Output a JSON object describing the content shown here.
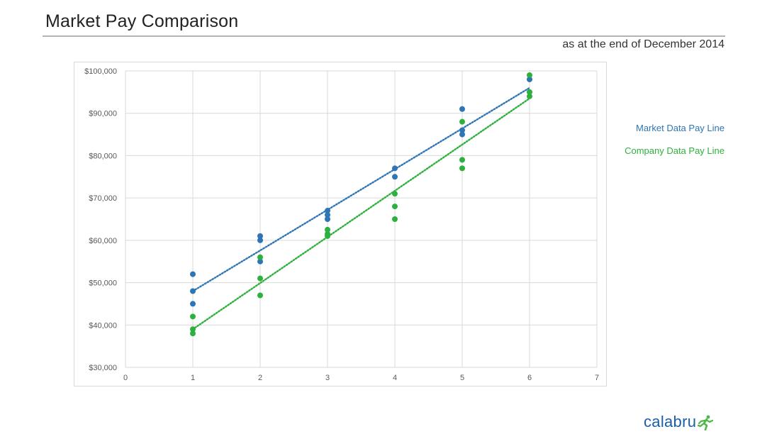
{
  "header": {
    "title": "Market Pay Comparison",
    "subtitle": "as at the end of December 2014"
  },
  "legend": {
    "market_label": "Market Data Pay Line",
    "company_label": "Company Data Pay Line"
  },
  "brand": {
    "logo_text": "calabru",
    "logo_color": "#1a5fa8",
    "logo_icon": "running-figure-icon",
    "icon_color": "#4cb848"
  },
  "colors": {
    "market": "#2e75b6",
    "company": "#2eb03e",
    "grid": "#d9d9d9",
    "tick_text": "#595959"
  },
  "chart_data": {
    "type": "scatter",
    "title": "",
    "xlabel": "",
    "ylabel": "",
    "xlim": [
      0,
      7
    ],
    "ylim": [
      30000,
      100000
    ],
    "x_ticks": [
      0,
      1,
      2,
      3,
      4,
      5,
      6,
      7
    ],
    "y_ticks": [
      30000,
      40000,
      50000,
      60000,
      70000,
      80000,
      90000,
      100000
    ],
    "y_tick_labels": [
      "$30,000",
      "$40,000",
      "$50,000",
      "$60,000",
      "$70,000",
      "$80,000",
      "$90,000",
      "$100,000"
    ],
    "grid": true,
    "legend_position": "right",
    "series": [
      {
        "name": "Market Data Pay Line",
        "color": "#2e75b6",
        "points": [
          [
            1,
            52000
          ],
          [
            1,
            48000
          ],
          [
            1,
            45000
          ],
          [
            2,
            61000
          ],
          [
            2,
            60000
          ],
          [
            2,
            55000
          ],
          [
            3,
            67000
          ],
          [
            3,
            66000
          ],
          [
            3,
            65000
          ],
          [
            4,
            77000
          ],
          [
            4,
            75000
          ],
          [
            5,
            91000
          ],
          [
            5,
            86000
          ],
          [
            5,
            85000
          ],
          [
            6,
            98000
          ]
        ],
        "trendline": {
          "type": "linear",
          "from": [
            1,
            48000
          ],
          "to": [
            6,
            96000
          ],
          "style": "dotted"
        }
      },
      {
        "name": "Company Data Pay Line",
        "color": "#2eb03e",
        "points": [
          [
            1,
            42000
          ],
          [
            1,
            39000
          ],
          [
            1,
            38000
          ],
          [
            2,
            56000
          ],
          [
            2,
            51000
          ],
          [
            2,
            47000
          ],
          [
            3,
            62500
          ],
          [
            3,
            61500
          ],
          [
            3,
            61000
          ],
          [
            4,
            71000
          ],
          [
            4,
            68000
          ],
          [
            4,
            65000
          ],
          [
            5,
            88000
          ],
          [
            5,
            79000
          ],
          [
            5,
            77000
          ],
          [
            6,
            99000
          ],
          [
            6,
            95000
          ],
          [
            6,
            94000
          ]
        ],
        "trendline": {
          "type": "linear",
          "from": [
            1,
            39000
          ],
          "to": [
            6,
            93500
          ],
          "style": "dotted"
        }
      }
    ]
  }
}
